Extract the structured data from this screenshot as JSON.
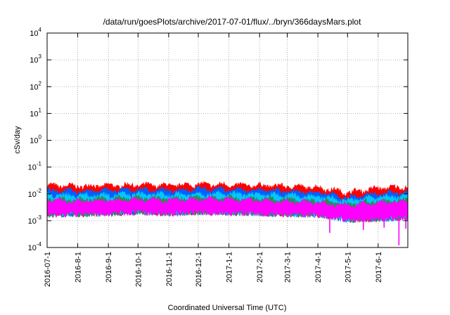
{
  "chart_data": {
    "type": "area",
    "title": "/data/run/goesPlots/archive/2017-07-01/flux/../bryn/366daysMars.plot",
    "xlabel": "Coordinated Universal Time (UTC)",
    "ylabel": "cSv/day",
    "yscale": "log",
    "ylim": [
      0.0001,
      10000
    ],
    "y_ticks": [
      {
        "base": "10",
        "exp": "-4"
      },
      {
        "base": "10",
        "exp": "-3"
      },
      {
        "base": "10",
        "exp": "-2"
      },
      {
        "base": "10",
        "exp": "-1"
      },
      {
        "base": "10",
        "exp": "0"
      },
      {
        "base": "10",
        "exp": "1"
      },
      {
        "base": "10",
        "exp": "2"
      },
      {
        "base": "10",
        "exp": "3"
      },
      {
        "base": "10",
        "exp": "4"
      }
    ],
    "xlim": [
      "2016-07-01",
      "2017-07-01"
    ],
    "x_ticks": [
      "2016-07-1",
      "2016-8-1",
      "2016-9-1",
      "2016-10-1",
      "2016-11-1",
      "2016-12-1",
      "2017-1-1",
      "2017-2-1",
      "2017-3-1",
      "2017-4-1",
      "2017-5-1",
      "2017-6-1"
    ],
    "x_tick_dates": [
      "2016-07-01",
      "2016-08-01",
      "2016-09-01",
      "2016-10-01",
      "2016-11-01",
      "2016-12-01",
      "2017-01-01",
      "2017-02-01",
      "2017-03-01",
      "2017-04-01",
      "2017-05-01",
      "2017-06-01"
    ],
    "grid": true,
    "legend": "none",
    "series": [
      {
        "color": "#ff0000",
        "x": [
          "2016-07-01",
          "2016-08-01",
          "2016-09-01",
          "2016-10-01",
          "2016-11-01",
          "2016-12-01",
          "2017-01-01",
          "2017-02-01",
          "2017-03-01",
          "2017-04-01",
          "2017-05-01",
          "2017-06-01",
          "2017-07-01"
        ],
        "y": [
          0.02,
          0.019,
          0.02,
          0.021,
          0.02,
          0.022,
          0.021,
          0.02,
          0.019,
          0.017,
          0.011,
          0.016,
          0.018
        ]
      },
      {
        "color": "#0060ff",
        "x": [
          "2016-07-01",
          "2016-08-01",
          "2016-09-01",
          "2016-10-01",
          "2016-11-01",
          "2016-12-01",
          "2017-01-01",
          "2017-02-01",
          "2017-03-01",
          "2017-04-01",
          "2017-05-01",
          "2017-06-01",
          "2017-07-01"
        ],
        "y": [
          0.013,
          0.012,
          0.013,
          0.014,
          0.013,
          0.015,
          0.014,
          0.013,
          0.012,
          0.011,
          0.007,
          0.01,
          0.011
        ]
      },
      {
        "color": "#00c8ff",
        "x": [
          "2016-07-01",
          "2016-08-01",
          "2016-09-01",
          "2016-10-01",
          "2016-11-01",
          "2016-12-01",
          "2017-01-01",
          "2017-02-01",
          "2017-03-01",
          "2017-04-01",
          "2017-05-01",
          "2017-06-01",
          "2017-07-01"
        ],
        "y": [
          0.009,
          0.0085,
          0.009,
          0.0095,
          0.009,
          0.01,
          0.0095,
          0.009,
          0.0085,
          0.0078,
          0.0055,
          0.0075,
          0.008
        ]
      },
      {
        "color": "#2e8b57",
        "x": [
          "2016-07-01",
          "2016-08-01",
          "2016-09-01",
          "2016-10-01",
          "2016-11-01",
          "2016-12-01",
          "2017-01-01",
          "2017-02-01",
          "2017-03-01",
          "2017-04-01",
          "2017-05-01",
          "2017-06-01",
          "2017-07-01"
        ],
        "y": [
          0.0065,
          0.006,
          0.0065,
          0.007,
          0.0065,
          0.0072,
          0.007,
          0.0065,
          0.006,
          0.0055,
          0.0042,
          0.0055,
          0.006
        ]
      },
      {
        "color": "#ff00ff",
        "x": [
          "2016-07-01",
          "2016-08-01",
          "2016-09-01",
          "2016-10-01",
          "2016-11-01",
          "2016-12-01",
          "2017-01-01",
          "2017-02-01",
          "2017-03-01",
          "2017-04-01",
          "2017-05-01",
          "2017-06-01",
          "2017-07-01"
        ],
        "y": [
          0.0055,
          0.005,
          0.0055,
          0.006,
          0.0055,
          0.0062,
          0.006,
          0.0055,
          0.005,
          0.0045,
          0.0035,
          0.0045,
          0.005
        ]
      }
    ],
    "lower_envelope": {
      "color": "#ff00ff",
      "x": [
        "2016-07-01",
        "2016-08-01",
        "2016-09-01",
        "2016-10-01",
        "2016-11-01",
        "2016-12-01",
        "2017-01-01",
        "2017-02-01",
        "2017-03-01",
        "2017-04-01",
        "2017-05-01",
        "2017-06-01",
        "2017-07-01"
      ],
      "y": [
        0.0017,
        0.0018,
        0.0019,
        0.0021,
        0.0019,
        0.0021,
        0.002,
        0.0019,
        0.0018,
        0.0017,
        0.0011,
        0.0012,
        0.0013
      ]
    },
    "dips": [
      {
        "x": "2017-04-13",
        "y": 0.00035
      },
      {
        "x": "2017-05-17",
        "y": 0.00045
      },
      {
        "x": "2017-06-07",
        "y": 0.00055
      },
      {
        "x": "2017-06-22",
        "y": 0.00012
      },
      {
        "x": "2017-06-29",
        "y": 0.0005
      }
    ]
  }
}
